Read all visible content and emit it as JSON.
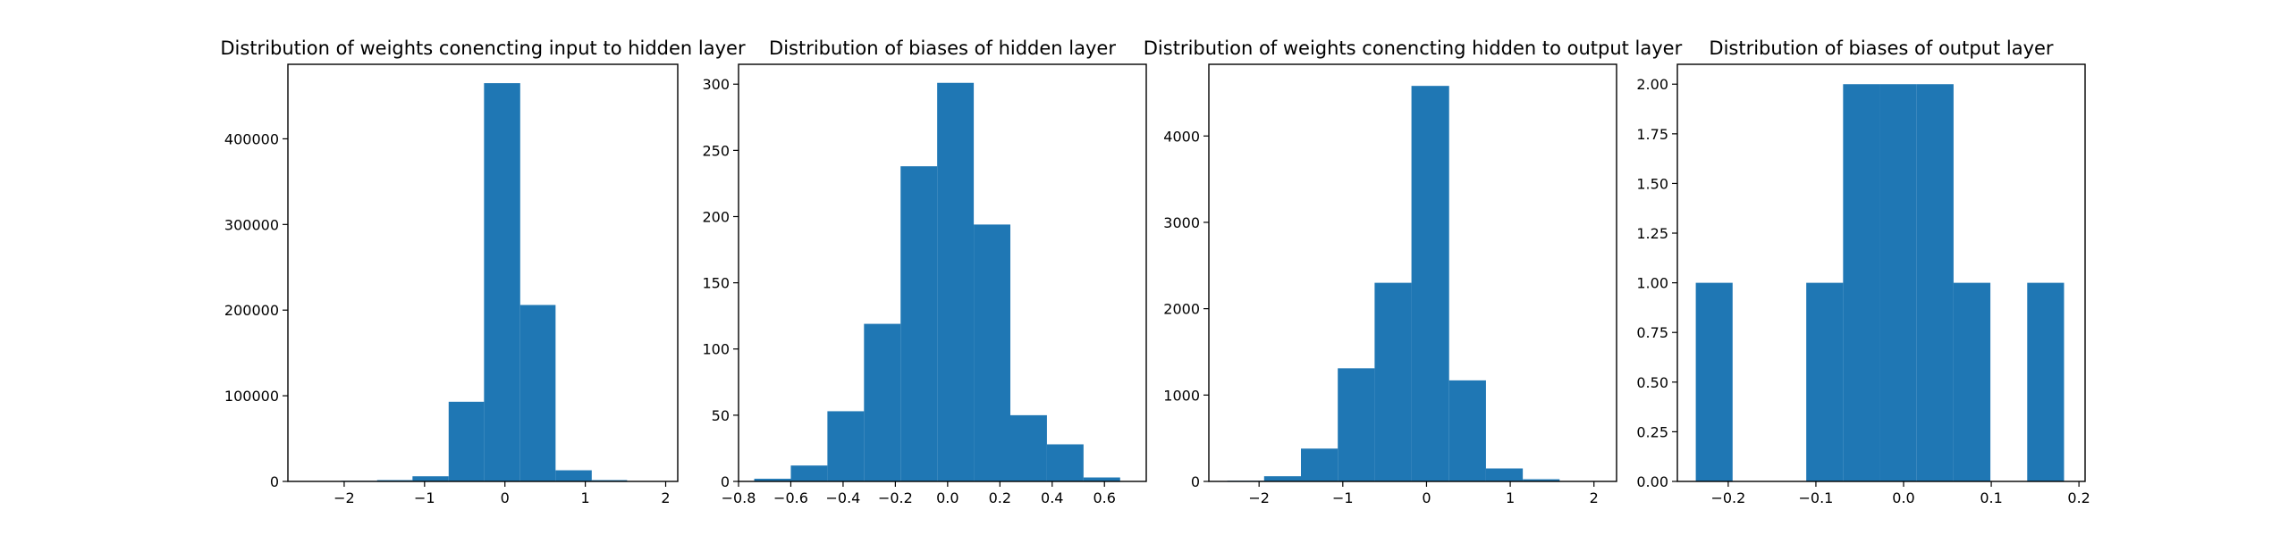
{
  "chart_data": [
    {
      "type": "bar",
      "title": "Distribution of weights conencting input to hidden layer",
      "xlim": [
        -2.7,
        2.15
      ],
      "ylim": [
        0,
        487000
      ],
      "xticks": [
        {
          "value": -2,
          "label": "−2"
        },
        {
          "value": -1,
          "label": "−1"
        },
        {
          "value": 0,
          "label": "0"
        },
        {
          "value": 1,
          "label": "1"
        },
        {
          "value": 2,
          "label": "2"
        }
      ],
      "yticks": [
        {
          "value": 0,
          "label": "0"
        },
        {
          "value": 100000,
          "label": "100000"
        },
        {
          "value": 200000,
          "label": "200000"
        },
        {
          "value": 300000,
          "label": "300000"
        },
        {
          "value": 400000,
          "label": "400000"
        }
      ],
      "bins": [
        {
          "x0": -2.48,
          "x1": -2.04,
          "value": 100
        },
        {
          "x0": -2.04,
          "x1": -1.59,
          "value": 700
        },
        {
          "x0": -1.59,
          "x1": -1.15,
          "value": 1500
        },
        {
          "x0": -1.15,
          "x1": -0.7,
          "value": 6000
        },
        {
          "x0": -0.7,
          "x1": -0.26,
          "value": 93000
        },
        {
          "x0": -0.26,
          "x1": 0.19,
          "value": 465000
        },
        {
          "x0": 0.19,
          "x1": 0.63,
          "value": 206000
        },
        {
          "x0": 0.63,
          "x1": 1.08,
          "value": 13000
        },
        {
          "x0": 1.08,
          "x1": 1.52,
          "value": 1500
        },
        {
          "x0": 1.52,
          "x1": 1.97,
          "value": 300
        }
      ]
    },
    {
      "type": "bar",
      "title": "Distribution of biases of hidden layer",
      "xlim": [
        -0.8,
        0.76
      ],
      "ylim": [
        0,
        315
      ],
      "xticks": [
        {
          "value": -0.8,
          "label": "−0.8"
        },
        {
          "value": -0.6,
          "label": "−0.6"
        },
        {
          "value": -0.4,
          "label": "−0.4"
        },
        {
          "value": -0.2,
          "label": "−0.2"
        },
        {
          "value": 0.0,
          "label": "0.0"
        },
        {
          "value": 0.2,
          "label": "0.2"
        },
        {
          "value": 0.4,
          "label": "0.4"
        },
        {
          "value": 0.6,
          "label": "0.6"
        }
      ],
      "yticks": [
        {
          "value": 0,
          "label": "0"
        },
        {
          "value": 50,
          "label": "50"
        },
        {
          "value": 100,
          "label": "100"
        },
        {
          "value": 150,
          "label": "150"
        },
        {
          "value": 200,
          "label": "200"
        },
        {
          "value": 250,
          "label": "250"
        },
        {
          "value": 300,
          "label": "300"
        }
      ],
      "bins": [
        {
          "x0": -0.74,
          "x1": -0.6,
          "value": 2
        },
        {
          "x0": -0.6,
          "x1": -0.46,
          "value": 12
        },
        {
          "x0": -0.46,
          "x1": -0.32,
          "value": 53
        },
        {
          "x0": -0.32,
          "x1": -0.18,
          "value": 119
        },
        {
          "x0": -0.18,
          "x1": -0.04,
          "value": 238
        },
        {
          "x0": -0.04,
          "x1": 0.1,
          "value": 301
        },
        {
          "x0": 0.1,
          "x1": 0.24,
          "value": 194
        },
        {
          "x0": 0.24,
          "x1": 0.38,
          "value": 50
        },
        {
          "x0": 0.38,
          "x1": 0.52,
          "value": 28
        },
        {
          "x0": 0.52,
          "x1": 0.66,
          "value": 3
        }
      ]
    },
    {
      "type": "bar",
      "title": "Distribution of weights conencting hidden to output layer",
      "xlim": [
        -2.6,
        2.27
      ],
      "ylim": [
        0,
        4830
      ],
      "xticks": [
        {
          "value": -2,
          "label": "−2"
        },
        {
          "value": -1,
          "label": "−1"
        },
        {
          "value": 0,
          "label": "0"
        },
        {
          "value": 1,
          "label": "1"
        },
        {
          "value": 2,
          "label": "2"
        }
      ],
      "yticks": [
        {
          "value": 0,
          "label": "0"
        },
        {
          "value": 1000,
          "label": "1000"
        },
        {
          "value": 2000,
          "label": "2000"
        },
        {
          "value": 3000,
          "label": "3000"
        },
        {
          "value": 4000,
          "label": "4000"
        }
      ],
      "bins": [
        {
          "x0": -2.38,
          "x1": -1.94,
          "value": 8
        },
        {
          "x0": -1.94,
          "x1": -1.5,
          "value": 60
        },
        {
          "x0": -1.5,
          "x1": -1.06,
          "value": 380
        },
        {
          "x0": -1.06,
          "x1": -0.62,
          "value": 1310
        },
        {
          "x0": -0.62,
          "x1": -0.18,
          "value": 2300
        },
        {
          "x0": -0.18,
          "x1": 0.27,
          "value": 4580
        },
        {
          "x0": 0.27,
          "x1": 0.71,
          "value": 1170
        },
        {
          "x0": 0.71,
          "x1": 1.15,
          "value": 150
        },
        {
          "x0": 1.15,
          "x1": 1.59,
          "value": 25
        },
        {
          "x0": 1.59,
          "x1": 2.04,
          "value": 4
        }
      ]
    },
    {
      "type": "bar",
      "title": "Distribution of biases of output layer",
      "xlim": [
        -0.258,
        0.207
      ],
      "ylim": [
        0,
        2.1
      ],
      "xticks": [
        {
          "value": -0.2,
          "label": "−0.2"
        },
        {
          "value": -0.1,
          "label": "−0.1"
        },
        {
          "value": 0.0,
          "label": "0.0"
        },
        {
          "value": 0.1,
          "label": "0.1"
        },
        {
          "value": 0.2,
          "label": "0.2"
        }
      ],
      "yticks": [
        {
          "value": 0,
          "label": "0.00"
        },
        {
          "value": 0.25,
          "label": "0.25"
        },
        {
          "value": 0.5,
          "label": "0.50"
        },
        {
          "value": 0.75,
          "label": "0.75"
        },
        {
          "value": 1.0,
          "label": "1.00"
        },
        {
          "value": 1.25,
          "label": "1.25"
        },
        {
          "value": 1.5,
          "label": "1.50"
        },
        {
          "value": 1.75,
          "label": "1.75"
        },
        {
          "value": 2.0,
          "label": "2.00"
        }
      ],
      "bins": [
        {
          "x0": -0.237,
          "x1": -0.195,
          "value": 1
        },
        {
          "x0": -0.195,
          "x1": -0.153,
          "value": 0
        },
        {
          "x0": -0.153,
          "x1": -0.111,
          "value": 0
        },
        {
          "x0": -0.111,
          "x1": -0.069,
          "value": 1
        },
        {
          "x0": -0.069,
          "x1": -0.027,
          "value": 2
        },
        {
          "x0": -0.027,
          "x1": 0.015,
          "value": 2
        },
        {
          "x0": 0.015,
          "x1": 0.057,
          "value": 2
        },
        {
          "x0": 0.057,
          "x1": 0.099,
          "value": 1
        },
        {
          "x0": 0.099,
          "x1": 0.141,
          "value": 0
        },
        {
          "x0": 0.141,
          "x1": 0.183,
          "value": 1
        }
      ]
    }
  ],
  "colors": {
    "bar": "#1f77b4",
    "axis": "#000000"
  }
}
